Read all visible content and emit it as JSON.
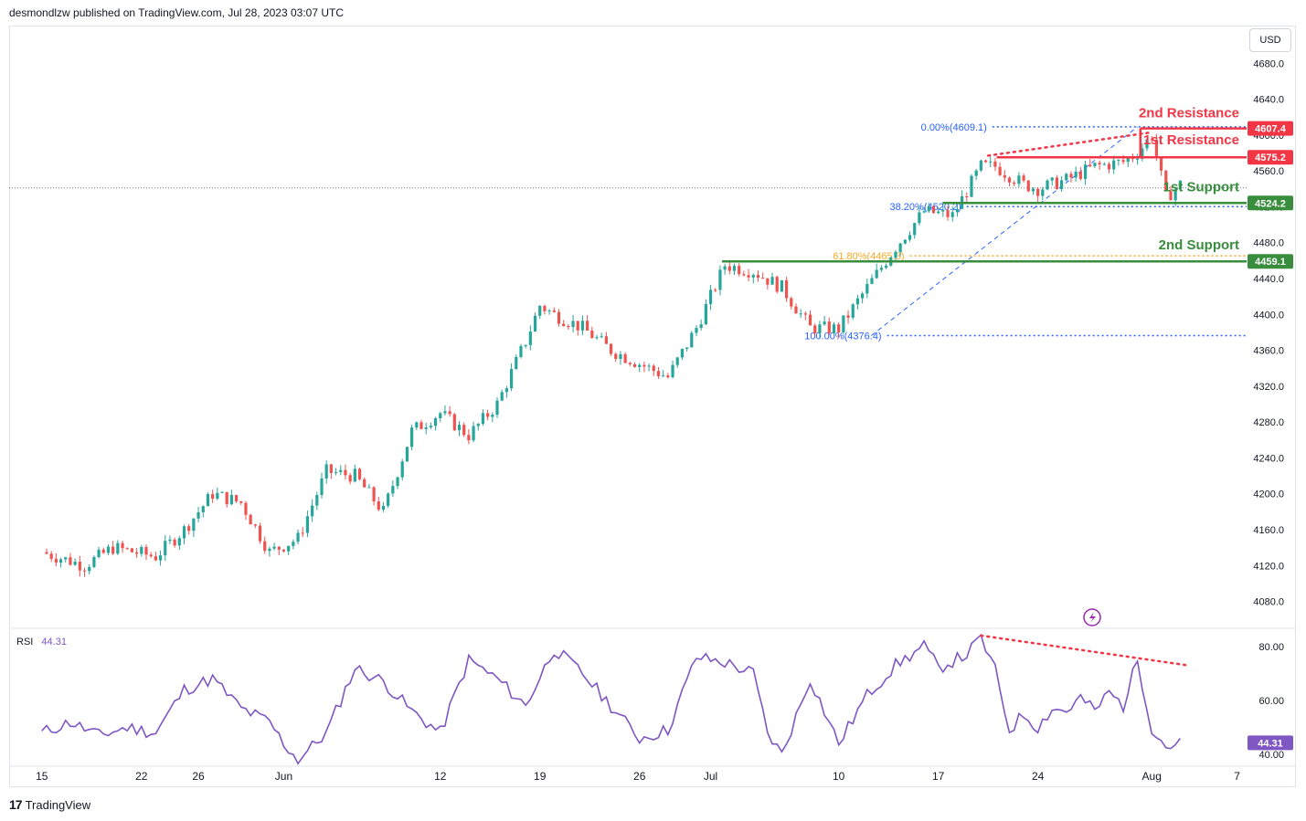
{
  "header": {
    "published": "desmondlzw published on TradingView.com, Jul 28, 2023 03:07 UTC"
  },
  "currency_button": "USD",
  "brand": {
    "mark": "17",
    "name": "TradingView"
  },
  "colors": {
    "up": "#26a69a",
    "down": "#ef5350",
    "resistance": "#f23645",
    "support": "#388e3c",
    "fib": "#2962ff",
    "fib_golden": "#f9a825",
    "rsi": "#7e57c2"
  },
  "chart_data": [
    {
      "type": "candlestick",
      "ylim": [
        4050,
        4720
      ],
      "y_ticks": [
        "4680.0",
        "4640.0",
        "4600.0",
        "4560.0",
        "4520.0",
        "4480.0",
        "4440.0",
        "4400.0",
        "4360.0",
        "4320.0",
        "4280.0",
        "4240.0",
        "4200.0",
        "4160.0",
        "4120.0",
        "4080.0"
      ],
      "x_ticks": [
        {
          "label": "15",
          "day": 0
        },
        {
          "label": "22",
          "day": 7
        },
        {
          "label": "26",
          "day": 11
        },
        {
          "label": "Jun",
          "day": 17
        },
        {
          "label": "12",
          "day": 28
        },
        {
          "label": "19",
          "day": 35
        },
        {
          "label": "26",
          "day": 42
        },
        {
          "label": "Jul",
          "day": 47
        },
        {
          "label": "10",
          "day": 56
        },
        {
          "label": "17",
          "day": 63
        },
        {
          "label": "24",
          "day": 70
        },
        {
          "label": "Aug",
          "day": 78
        },
        {
          "label": "7",
          "day": 84
        }
      ],
      "x_domain_days": [
        -2.3,
        88.2
      ],
      "anchors": [
        [
          0,
          4135
        ],
        [
          3,
          4120
        ],
        [
          5,
          4140
        ],
        [
          8,
          4130
        ],
        [
          10,
          4160
        ],
        [
          12,
          4200
        ],
        [
          14,
          4190
        ],
        [
          16,
          4135
        ],
        [
          18,
          4150
        ],
        [
          20,
          4225
        ],
        [
          22,
          4220
        ],
        [
          24,
          4180
        ],
        [
          26,
          4270
        ],
        [
          28,
          4290
        ],
        [
          30,
          4265
        ],
        [
          32,
          4300
        ],
        [
          34,
          4370
        ],
        [
          35,
          4410
        ],
        [
          36,
          4400
        ],
        [
          38,
          4385
        ],
        [
          40,
          4360
        ],
        [
          42,
          4345
        ],
        [
          44,
          4330
        ],
        [
          46,
          4385
        ],
        [
          48,
          4455
        ],
        [
          50,
          4448
        ],
        [
          52,
          4430
        ],
        [
          54,
          4385
        ],
        [
          56,
          4384
        ],
        [
          58,
          4430
        ],
        [
          60,
          4475
        ],
        [
          62,
          4515
        ],
        [
          64,
          4510
        ],
        [
          66,
          4565
        ],
        [
          67,
          4565
        ],
        [
          69,
          4545
        ],
        [
          70,
          4540
        ],
        [
          72,
          4550
        ],
        [
          74,
          4565
        ],
        [
          76,
          4570
        ],
        [
          77,
          4580
        ],
        [
          78,
          4600
        ],
        [
          79,
          4530
        ],
        [
          80,
          4545
        ]
      ],
      "last_price_tag": "4541.0"
    },
    {
      "type": "line",
      "name": "RSI",
      "current_value": "44.31",
      "ylim": [
        36,
        86
      ],
      "y_ticks": [
        "80.00",
        "60.00",
        "40.00"
      ],
      "anchors": [
        [
          0,
          48
        ],
        [
          2,
          52
        ],
        [
          4,
          47
        ],
        [
          6,
          50
        ],
        [
          8,
          48
        ],
        [
          10,
          64
        ],
        [
          12,
          68
        ],
        [
          14,
          57
        ],
        [
          16,
          52
        ],
        [
          17,
          44
        ],
        [
          18,
          38
        ],
        [
          20,
          48
        ],
        [
          22,
          72
        ],
        [
          24,
          67
        ],
        [
          26,
          56
        ],
        [
          28,
          48
        ],
        [
          30,
          75
        ],
        [
          32,
          68
        ],
        [
          34,
          58
        ],
        [
          36,
          79
        ],
        [
          38,
          70
        ],
        [
          40,
          58
        ],
        [
          42,
          46
        ],
        [
          44,
          49
        ],
        [
          46,
          76
        ],
        [
          48,
          74
        ],
        [
          50,
          70
        ],
        [
          51,
          48
        ],
        [
          52,
          40
        ],
        [
          54,
          68
        ],
        [
          56,
          44
        ],
        [
          58,
          62
        ],
        [
          60,
          73
        ],
        [
          62,
          80
        ],
        [
          63,
          72
        ],
        [
          65,
          77
        ],
        [
          66,
          83
        ],
        [
          67,
          71
        ],
        [
          68,
          49
        ],
        [
          69,
          55
        ],
        [
          70,
          50
        ],
        [
          71,
          57
        ],
        [
          72,
          56
        ],
        [
          73,
          61
        ],
        [
          74,
          56
        ],
        [
          75,
          63
        ],
        [
          76,
          58
        ],
        [
          77,
          75
        ],
        [
          78,
          50
        ],
        [
          79,
          43
        ],
        [
          80,
          44
        ]
      ]
    }
  ],
  "levels": {
    "second_resistance": {
      "label": "2nd Resistance",
      "price": 4607.4,
      "tag": "4607.4",
      "start_day": 77.2
    },
    "first_resistance": {
      "label": "1st Resistance",
      "price": 4575.2,
      "tag": "4575.2",
      "start_day": 67.1
    },
    "first_support": {
      "label": "1st Support",
      "price": 4524.2,
      "tag": "4524.2",
      "start_day": 63.3
    },
    "second_support": {
      "label": "2nd Support",
      "price": 4459.1,
      "tag": "4459.1",
      "start_day": 47.8
    }
  },
  "fib_levels": [
    {
      "label": "0.00%(4609.1)",
      "price": 4609.1,
      "start_day": 66.8,
      "golden": false
    },
    {
      "label": "38.20%(4520.2)",
      "price": 4520.2,
      "start_day": 65.0,
      "golden": false
    },
    {
      "label": "61.80%(4465.3)",
      "price": 4465.3,
      "start_day": 61.0,
      "golden": true
    },
    {
      "label": "100.00%(4376.4)",
      "price": 4376.4,
      "start_day": 59.4,
      "golden": false
    }
  ],
  "fib_trend": {
    "from_day": 58.3,
    "from_price": 4376.4,
    "to_day": 77.0,
    "to_price": 4609.1
  },
  "price_divergence": {
    "from_day": 66.5,
    "from_price": 4577,
    "to_day": 78.0,
    "to_price": 4603
  },
  "rsi_divergence": {
    "from_day": 66.0,
    "from_value": 84,
    "to_day": 80.5,
    "to_value": 73
  }
}
